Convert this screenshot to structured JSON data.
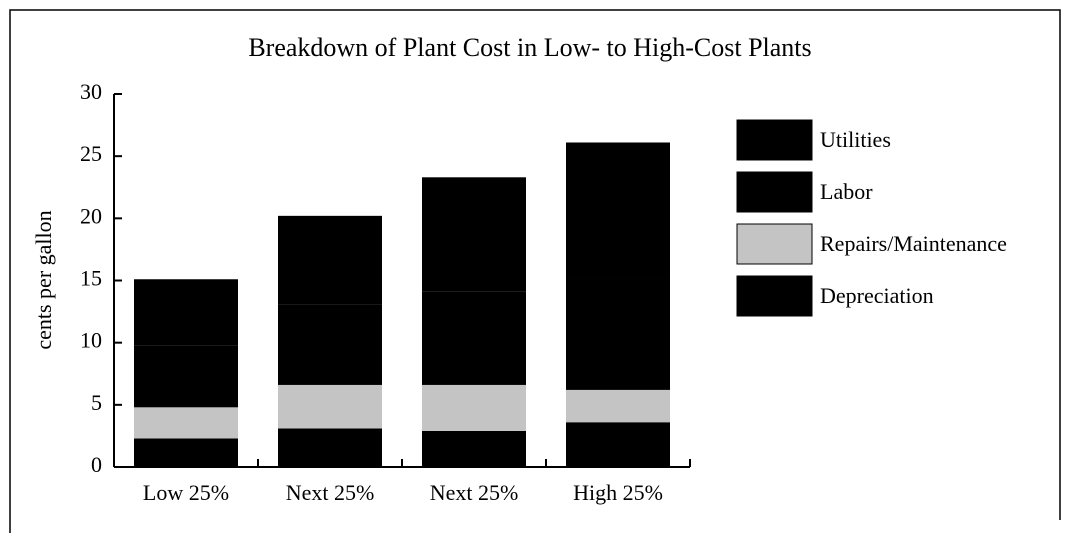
{
  "chart_data": {
    "type": "stacked_bar",
    "title": "Breakdown of Plant Cost in Low- to High-Cost Plants",
    "y_label": "cents per gallon",
    "categories": [
      "Low 25%",
      "Next 25%",
      "Next 25%",
      "High 25%"
    ],
    "series": [
      {
        "name": "Utilities",
        "color": "#000000",
        "values": [
          5.3,
          7.1,
          9.2,
          10.9
        ]
      },
      {
        "name": "Labor",
        "color": "#000000",
        "values": [
          5.0,
          6.5,
          7.5,
          9.0
        ]
      },
      {
        "name": "Repairs/Maintenance",
        "color": "#c4c4c4",
        "values": [
          2.5,
          3.5,
          3.7,
          2.6
        ]
      },
      {
        "name": "Depreciation",
        "color": "#000000",
        "values": [
          2.3,
          3.1,
          2.9,
          3.6
        ]
      }
    ],
    "ylim": [
      0,
      30
    ],
    "yticks": [
      0,
      5,
      10,
      15,
      20,
      25,
      30
    ]
  }
}
